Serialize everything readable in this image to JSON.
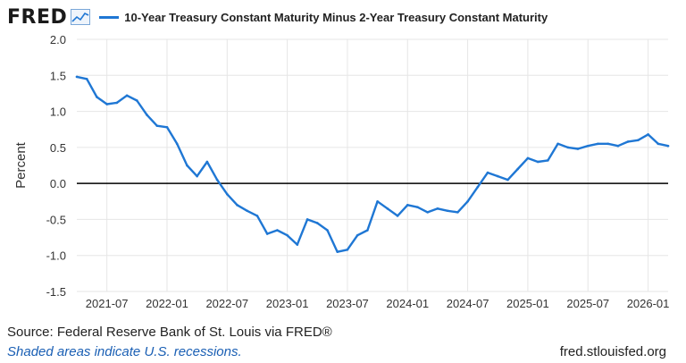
{
  "header": {
    "logo_text": "FRED",
    "logo_icon": "line-graph-icon"
  },
  "footer": {
    "source": "Source: Federal Reserve Bank of St. Louis via FRED®",
    "note": "Shaded areas indicate U.S. recessions.",
    "url": "fred.stlouisfed.org"
  },
  "colors": {
    "series": "#1f77d4",
    "zero_line": "#000000",
    "grid": "#e6e6e6",
    "note": "#1a5fb4"
  },
  "chart_data": {
    "type": "line",
    "title": "",
    "xlabel": "",
    "ylabel": "Percent",
    "ylim": [
      -1.5,
      2.0
    ],
    "yticks": [
      "2.0",
      "1.5",
      "1.0",
      "0.5",
      "0.0",
      "-0.5",
      "-1.0",
      "-1.5"
    ],
    "xticks": [
      "2021-07",
      "2022-01",
      "2022-07",
      "2023-01",
      "2023-07",
      "2024-01",
      "2024-07",
      "2025-01",
      "2025-07",
      "2026-01"
    ],
    "xlim": [
      "2021-04",
      "2026-03"
    ],
    "grid": true,
    "legend_position": "top-left",
    "reference_line_y": 0,
    "series": [
      {
        "name": "10-Year Treasury Constant Maturity Minus 2-Year Treasury Constant Maturity",
        "x": [
          "2021-04",
          "2021-05",
          "2021-06",
          "2021-07",
          "2021-08",
          "2021-09",
          "2021-10",
          "2021-11",
          "2021-12",
          "2022-01",
          "2022-02",
          "2022-03",
          "2022-04",
          "2022-05",
          "2022-06",
          "2022-07",
          "2022-08",
          "2022-09",
          "2022-10",
          "2022-11",
          "2022-12",
          "2023-01",
          "2023-02",
          "2023-03",
          "2023-04",
          "2023-05",
          "2023-06",
          "2023-07",
          "2023-08",
          "2023-09",
          "2023-10",
          "2023-11",
          "2023-12",
          "2024-01",
          "2024-02",
          "2024-03",
          "2024-04",
          "2024-05",
          "2024-06",
          "2024-07",
          "2024-08",
          "2024-09",
          "2024-10",
          "2024-11",
          "2024-12",
          "2025-01",
          "2025-02",
          "2025-03",
          "2025-04",
          "2025-05",
          "2025-06",
          "2025-07",
          "2025-08",
          "2025-09",
          "2025-10",
          "2025-11",
          "2025-12",
          "2026-01",
          "2026-02",
          "2026-03"
        ],
        "values": [
          1.48,
          1.45,
          1.2,
          1.1,
          1.12,
          1.22,
          1.15,
          0.95,
          0.8,
          0.78,
          0.55,
          0.25,
          0.1,
          0.3,
          0.05,
          -0.15,
          -0.3,
          -0.38,
          -0.45,
          -0.7,
          -0.65,
          -0.72,
          -0.85,
          -0.5,
          -0.55,
          -0.65,
          -0.95,
          -0.92,
          -0.72,
          -0.65,
          -0.25,
          -0.35,
          -0.45,
          -0.3,
          -0.33,
          -0.4,
          -0.35,
          -0.38,
          -0.4,
          -0.25,
          -0.05,
          0.15,
          0.1,
          0.05,
          0.2,
          0.35,
          0.3,
          0.32,
          0.55,
          0.5,
          0.48,
          0.52,
          0.55,
          0.55,
          0.52,
          0.58,
          0.6,
          0.68,
          0.55,
          0.52
        ]
      }
    ]
  }
}
